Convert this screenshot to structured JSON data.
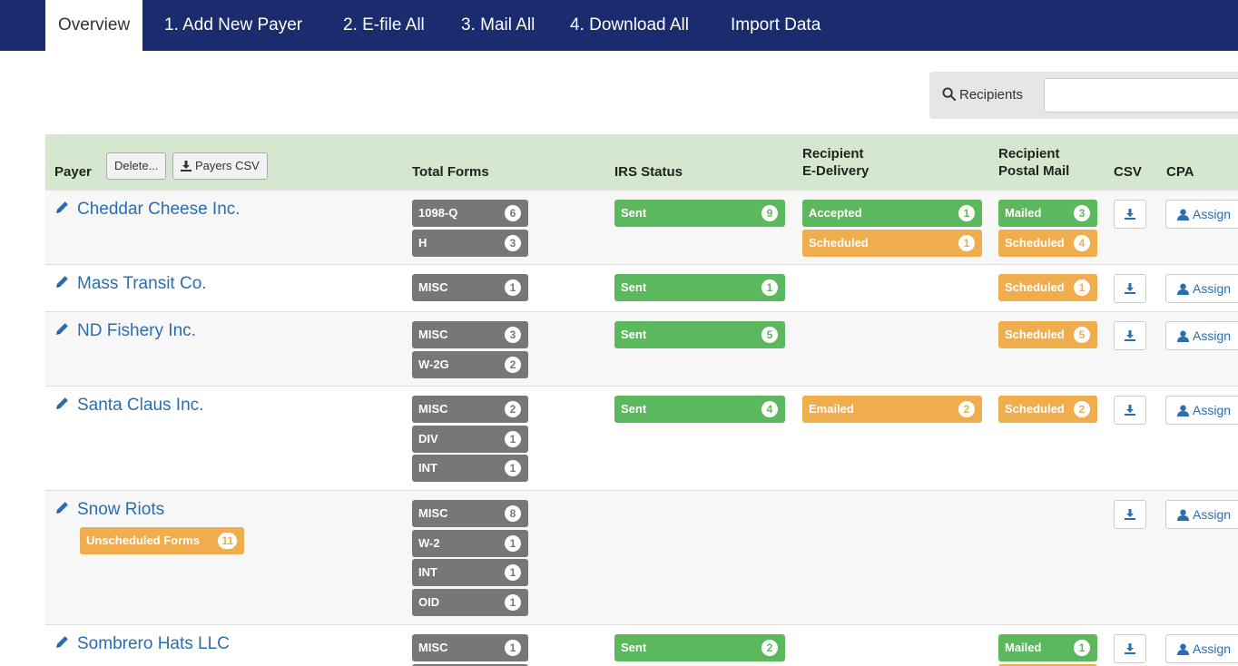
{
  "nav": {
    "tabs": [
      {
        "label": "Overview"
      },
      {
        "label": "1. Add New Payer"
      },
      {
        "label": "2. E-file All"
      },
      {
        "label": "3. Mail All"
      },
      {
        "label": "4. Download All"
      },
      {
        "label": "Import Data"
      }
    ]
  },
  "search": {
    "label": "Recipients",
    "value": "",
    "icon": "search-icon"
  },
  "table": {
    "headers": {
      "payer": "Payer",
      "delete_button": "Delete...",
      "payers_csv_button": "Payers CSV",
      "total_forms": "Total Forms",
      "irs_status": "IRS Status",
      "recipient_edelivery_line1": "Recipient",
      "recipient_edelivery_line2": "E-Delivery",
      "recipient_postal_line1": "Recipient",
      "recipient_postal_line2": "Postal Mail",
      "csv": "CSV",
      "cpa": "CPA"
    },
    "assign_label": "Assign",
    "rows": [
      {
        "name": "Cheddar Cheese Inc.",
        "forms": [
          {
            "label": "1098-Q",
            "count": "6"
          },
          {
            "label": "H",
            "count": "3"
          }
        ],
        "irs": [
          {
            "label": "Sent",
            "count": "9"
          }
        ],
        "edelivery": [
          {
            "label": "Accepted",
            "count": "1",
            "color": "#5cb85c"
          },
          {
            "label": "Scheduled",
            "count": "1",
            "color": "#f0ad4e"
          }
        ],
        "postal": [
          {
            "label": "Mailed",
            "count": "3",
            "color": "#5cb85c"
          },
          {
            "label": "Scheduled",
            "count": "4",
            "color": "#f0ad4e"
          }
        ]
      },
      {
        "name": "Mass Transit Co.",
        "forms": [
          {
            "label": "MISC",
            "count": "1"
          }
        ],
        "irs": [
          {
            "label": "Sent",
            "count": "1"
          }
        ],
        "edelivery": [],
        "postal": [
          {
            "label": "Scheduled",
            "count": "1",
            "color": "#f0ad4e"
          }
        ]
      },
      {
        "name": "ND Fishery Inc.",
        "forms": [
          {
            "label": "MISC",
            "count": "3"
          },
          {
            "label": "W-2G",
            "count": "2"
          }
        ],
        "irs": [
          {
            "label": "Sent",
            "count": "5"
          }
        ],
        "edelivery": [],
        "postal": [
          {
            "label": "Scheduled",
            "count": "5",
            "color": "#f0ad4e"
          }
        ]
      },
      {
        "name": "Santa Claus Inc.",
        "forms": [
          {
            "label": "MISC",
            "count": "2"
          },
          {
            "label": "DIV",
            "count": "1"
          },
          {
            "label": "INT",
            "count": "1"
          }
        ],
        "irs": [
          {
            "label": "Sent",
            "count": "4"
          }
        ],
        "edelivery": [
          {
            "label": "Emailed",
            "count": "2",
            "color": "#f0ad4e"
          }
        ],
        "postal": [
          {
            "label": "Scheduled",
            "count": "2",
            "color": "#f0ad4e"
          }
        ]
      },
      {
        "name": "Snow Riots",
        "badge": {
          "label": "Unscheduled Forms",
          "count": "11"
        },
        "forms": [
          {
            "label": "MISC",
            "count": "8"
          },
          {
            "label": "W-2",
            "count": "1"
          },
          {
            "label": "INT",
            "count": "1"
          },
          {
            "label": "OID",
            "count": "1"
          }
        ],
        "irs": [],
        "edelivery": [],
        "postal": []
      },
      {
        "name": "Sombrero Hats LLC",
        "forms": [
          {
            "label": "MISC",
            "count": "1"
          },
          {
            "label": "",
            "count": ""
          }
        ],
        "irs": [
          {
            "label": "Sent",
            "count": "2"
          }
        ],
        "edelivery": [],
        "postal": [
          {
            "label": "Mailed",
            "count": "1",
            "color": "#5cb85c"
          },
          {
            "label": "",
            "count": "",
            "color": "#f0ad4e"
          }
        ]
      }
    ]
  },
  "colors": {
    "nav_bg": "#1a2b6e",
    "header_bg": "#d5e8cf",
    "form_chip": "#777777",
    "success": "#5cb85c",
    "warning": "#f0ad4e",
    "link": "#2a6eb0"
  }
}
